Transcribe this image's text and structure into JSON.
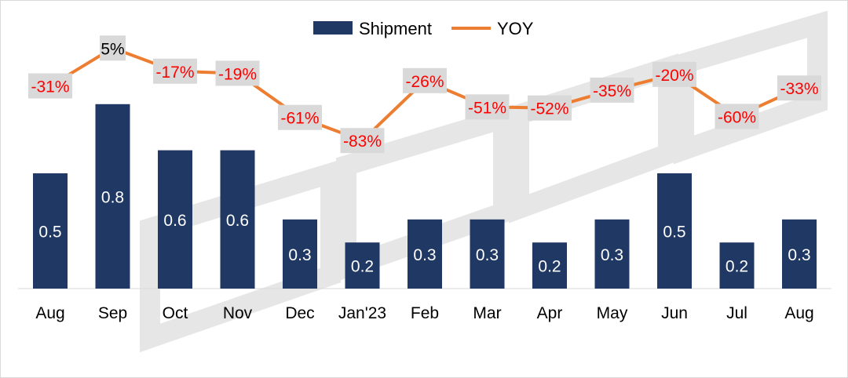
{
  "chart_data": {
    "type": "bar",
    "categories": [
      "Aug",
      "Sep",
      "Oct",
      "Nov",
      "Dec",
      "Jan'23",
      "Feb",
      "Mar",
      "Apr",
      "May",
      "Jun",
      "Jul",
      "Aug"
    ],
    "series": [
      {
        "name": "Shipment",
        "type": "bar",
        "values": [
          0.5,
          0.8,
          0.6,
          0.6,
          0.3,
          0.2,
          0.3,
          0.3,
          0.2,
          0.3,
          0.5,
          0.2,
          0.3
        ],
        "labels": [
          "0.5",
          "0.8",
          "0.6",
          "0.6",
          "0.3",
          "0.2",
          "0.3",
          "0.3",
          "0.2",
          "0.3",
          "0.5",
          "0.2",
          "0.3"
        ],
        "color": "#203864"
      },
      {
        "name": "YOY",
        "type": "line",
        "values": [
          -31,
          5,
          -17,
          -19,
          -61,
          -83,
          -26,
          -51,
          -52,
          -35,
          -20,
          -60,
          -33
        ],
        "labels": [
          "-31%",
          "5%",
          "-17%",
          "-19%",
          "-61%",
          "-83%",
          "-26%",
          "-51%",
          "-52%",
          "-35%",
          "-20%",
          "-60%",
          "-33%"
        ],
        "color": "#ed7d31",
        "label_color_negative": "#ff0000",
        "label_color_positive": "#000000",
        "label_background": "#d9d9d9"
      }
    ],
    "legend": {
      "position": "top-center",
      "entries": [
        "Shipment",
        "YOY"
      ]
    },
    "grid": false,
    "watermark": "DSCC"
  }
}
